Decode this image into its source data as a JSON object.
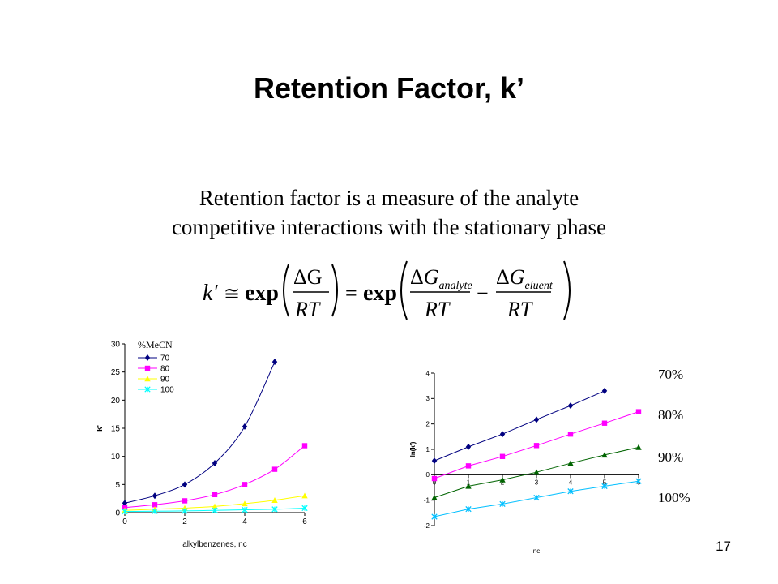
{
  "slide": {
    "title": "Retention Factor, k’",
    "subtitle_lines": [
      "Retention factor is a measure of the analyte",
      "competitive interactions with the stationary phase"
    ],
    "page_number": "17"
  },
  "equation": {
    "lhs": "k'",
    "approx": "≅",
    "exp": "exp",
    "deltaG": "ΔG",
    "RT": "RT",
    "equals": "=",
    "minus": "−",
    "G": "G",
    "analyte": "analyte",
    "eluent": "eluent"
  },
  "pct_labels": [
    "70%",
    "80%",
    "90%",
    "100%"
  ],
  "chart_data": [
    {
      "type": "line",
      "xlabel": "alkylbenzenes, nc",
      "ylabel": "k'",
      "legend_title": "%MeCN",
      "legend_position": "top-left",
      "xlim": [
        0,
        6
      ],
      "ylim": [
        0,
        30
      ],
      "xticks": [
        0,
        2,
        4,
        6
      ],
      "yticks": [
        0,
        5,
        10,
        15,
        20,
        25,
        30
      ],
      "grid": false,
      "series": [
        {
          "name": "70",
          "color": "#000080",
          "marker": "diamond",
          "x": [
            0,
            1,
            2,
            3,
            4,
            5
          ],
          "values": [
            1.7,
            3.0,
            5.0,
            8.8,
            15.3,
            26.8
          ]
        },
        {
          "name": "80",
          "color": "#ff00ff",
          "marker": "square",
          "x": [
            0,
            1,
            2,
            3,
            4,
            5,
            6
          ],
          "values": [
            0.9,
            1.4,
            2.1,
            3.2,
            5.0,
            7.7,
            11.9
          ]
        },
        {
          "name": "90",
          "color": "#ffff00",
          "marker": "triangle",
          "x": [
            0,
            1,
            2,
            3,
            4,
            5,
            6
          ],
          "values": [
            0.4,
            0.6,
            0.8,
            1.1,
            1.6,
            2.2,
            3.0
          ]
        },
        {
          "name": "100",
          "color": "#00ffff",
          "marker": "x",
          "x": [
            0,
            1,
            2,
            3,
            4,
            5,
            6
          ],
          "values": [
            0.2,
            0.25,
            0.3,
            0.4,
            0.5,
            0.6,
            0.8
          ]
        }
      ]
    },
    {
      "type": "line",
      "xlabel": "nc",
      "ylabel": "ln(k')",
      "xlim": [
        0,
        6
      ],
      "ylim": [
        -2,
        4
      ],
      "xticks": [
        0,
        1,
        2,
        3,
        4,
        5,
        6
      ],
      "yticks": [
        -2,
        -1,
        0,
        1,
        2,
        3,
        4
      ],
      "grid": false,
      "series": [
        {
          "color": "#000080",
          "marker": "diamond",
          "x": [
            0,
            1,
            2,
            3,
            4,
            5
          ],
          "values": [
            0.55,
            1.1,
            1.6,
            2.17,
            2.72,
            3.3
          ]
        },
        {
          "color": "#ff00ff",
          "marker": "square",
          "x": [
            0,
            1,
            2,
            3,
            4,
            5,
            6
          ],
          "values": [
            -0.15,
            0.35,
            0.72,
            1.15,
            1.6,
            2.03,
            2.48
          ]
        },
        {
          "color": "#006400",
          "marker": "triangle",
          "x": [
            0,
            1,
            2,
            3,
            4,
            5,
            6
          ],
          "values": [
            -0.9,
            -0.45,
            -0.2,
            0.1,
            0.45,
            0.78,
            1.08
          ]
        },
        {
          "color": "#00bfff",
          "marker": "x",
          "x": [
            0,
            1,
            2,
            3,
            4,
            5,
            6
          ],
          "values": [
            -1.65,
            -1.35,
            -1.15,
            -0.9,
            -0.65,
            -0.45,
            -0.25
          ]
        }
      ]
    }
  ]
}
